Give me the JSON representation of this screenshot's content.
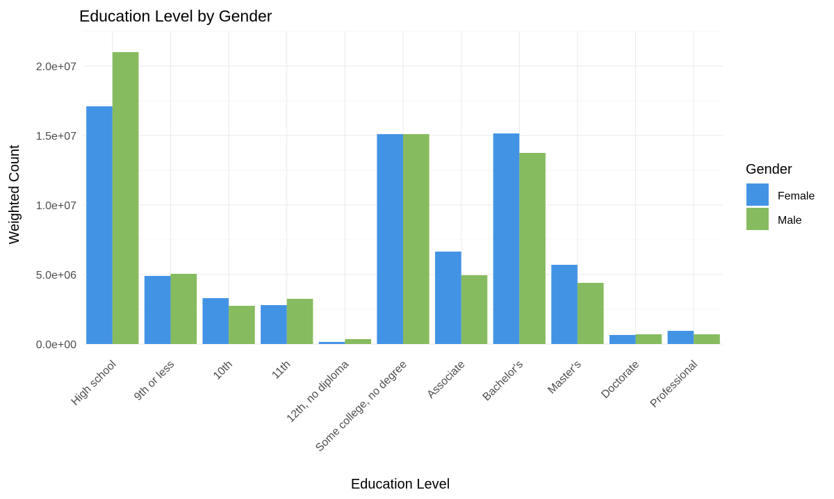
{
  "chart_data": {
    "type": "bar",
    "title": "Education Level by Gender",
    "xlabel": "Education Level",
    "ylabel": "Weighted Count",
    "categories": [
      "High school",
      "9th or less",
      "10th",
      "11th",
      "12th, no diploma",
      "Some college, no degree",
      "Associate",
      "Bachelor's",
      "Master's",
      "Doctorate",
      "Professional"
    ],
    "series": [
      {
        "name": "Female",
        "color": "#4393E5",
        "values": [
          17100000,
          4900000,
          3300000,
          2800000,
          150000,
          15100000,
          6650000,
          15150000,
          5700000,
          650000,
          950000
        ]
      },
      {
        "name": "Male",
        "color": "#87BB5F",
        "values": [
          21000000,
          5050000,
          2750000,
          3250000,
          350000,
          15100000,
          4950000,
          13750000,
          4400000,
          700000,
          700000
        ]
      }
    ],
    "ylim": [
      0,
      22500000
    ],
    "yticks": [
      0,
      5000000,
      10000000,
      15000000,
      20000000
    ],
    "ytick_labels": [
      "0.0e+00",
      "5.0e+06",
      "1.0e+07",
      "1.5e+07",
      "2.0e+07"
    ],
    "legend": {
      "title": "Gender",
      "position": "right"
    },
    "grid": true
  }
}
